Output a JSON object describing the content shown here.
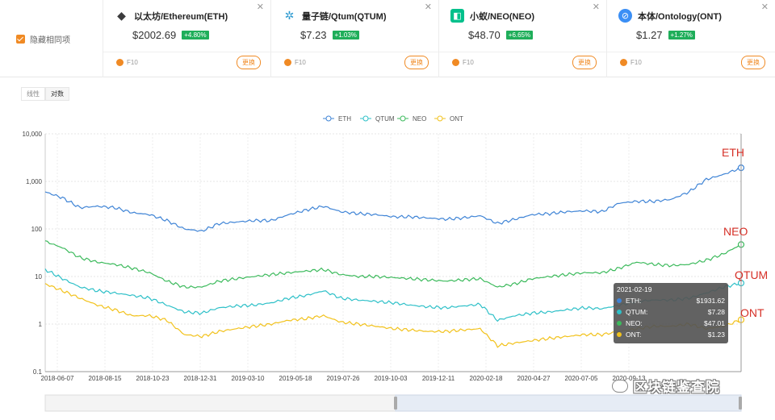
{
  "compare": {
    "hide_same_label": "隐藏相同项",
    "cards": [
      {
        "name": "以太坊/Ethereum(ETH)",
        "price": "$2002.69",
        "change": "+4.80%",
        "f10": "F10",
        "swap": "更换",
        "icon": "ethereum-icon",
        "icon_color": "#3c3c3d",
        "icon_glyph": "◆"
      },
      {
        "name": "量子链/Qtum(QTUM)",
        "price": "$7.23",
        "change": "+1.03%",
        "f10": "F10",
        "swap": "更换",
        "icon": "qtum-icon",
        "icon_color": "#2e9ad0",
        "icon_glyph": "✲"
      },
      {
        "name": "小蚁/NEO(NEO)",
        "price": "$48.70",
        "change": "+6.65%",
        "f10": "F10",
        "swap": "更换",
        "icon": "neo-icon",
        "icon_color": "#00c08b",
        "icon_glyph": "◧"
      },
      {
        "name": "本体/Ontology(ONT)",
        "price": "$1.27",
        "change": "+1.27%",
        "f10": "F10",
        "swap": "更换",
        "icon": "ontology-icon",
        "icon_color": "#3b8ff5",
        "icon_glyph": "⊘"
      }
    ]
  },
  "scale_toggle": {
    "linear": "线性",
    "log": "对数",
    "active": "log"
  },
  "watermark": "区块链鉴查院",
  "tooltip": {
    "date": "2021-02-19",
    "rows": [
      {
        "label": "ETH:",
        "value": "$1931.62",
        "color": "#3f84d6"
      },
      {
        "label": "QTUM:",
        "value": "$7.28",
        "color": "#2ec0c8"
      },
      {
        "label": "NEO:",
        "value": "$47.01",
        "color": "#3cba5c"
      },
      {
        "label": "ONT:",
        "value": "$1.23",
        "color": "#f2c21c"
      }
    ]
  },
  "annotations": [
    "ETH",
    "NEO",
    "QTUM",
    "ONT"
  ],
  "chart_data": {
    "type": "line",
    "y_scale": "log",
    "ylim": [
      0.1,
      10000
    ],
    "y_ticks": [
      "10,000",
      "1,000",
      "100",
      "10",
      "1",
      "0.1"
    ],
    "x_ticks": [
      "2018-06-07",
      "2018-08-15",
      "2018-10-23",
      "2018-12-31",
      "2019-03-10",
      "2019-05-18",
      "2019-07-26",
      "2019-10-03",
      "2019-12-11",
      "2020-02-18",
      "2020-04-27",
      "2020-07-05",
      "2020-09-13"
    ],
    "grid": true,
    "legend": "top",
    "series": [
      {
        "name": "ETH",
        "color": "#3f84d6",
        "values": [
          600,
          450,
          280,
          300,
          280,
          220,
          200,
          150,
          100,
          90,
          130,
          140,
          150,
          150,
          200,
          250,
          300,
          230,
          210,
          200,
          180,
          180,
          170,
          160,
          170,
          190,
          130,
          160,
          200,
          210,
          230,
          240,
          230,
          350,
          380,
          380,
          420,
          600,
          1100,
          1400,
          1931.62
        ]
      },
      {
        "name": "QTUM",
        "color": "#2ec0c8",
        "values": [
          14,
          9,
          6,
          5,
          4.5,
          4,
          3.5,
          2.5,
          1.8,
          1.7,
          2.2,
          2.4,
          2.5,
          2.8,
          3.5,
          4,
          5,
          3.5,
          3.2,
          3,
          2.8,
          2.5,
          2.3,
          2.2,
          2.4,
          2.6,
          1.2,
          1.5,
          1.7,
          1.8,
          2,
          2.2,
          2.1,
          2.5,
          3,
          3.2,
          3.2,
          3.5,
          4.5,
          6,
          7.28
        ]
      },
      {
        "name": "NEO",
        "color": "#3cba5c",
        "values": [
          55,
          40,
          25,
          20,
          18,
          15,
          12,
          8,
          6,
          6,
          8,
          9,
          10,
          11,
          12,
          13,
          14,
          11,
          10,
          10,
          9.5,
          9,
          8.5,
          8,
          8.5,
          9,
          6,
          7,
          9,
          10,
          11,
          12,
          12,
          15,
          20,
          18,
          17,
          18,
          22,
          30,
          47.01
        ]
      },
      {
        "name": "ONT",
        "color": "#f2c21c",
        "values": [
          7,
          5,
          3.5,
          2.5,
          2,
          1.5,
          1.5,
          1.2,
          0.6,
          0.55,
          0.7,
          0.8,
          0.9,
          1,
          1.2,
          1.3,
          1.5,
          1.1,
          1,
          0.9,
          0.8,
          0.75,
          0.7,
          0.7,
          0.75,
          0.8,
          0.35,
          0.4,
          0.45,
          0.5,
          0.55,
          0.6,
          0.6,
          0.7,
          0.8,
          0.9,
          0.9,
          1,
          0.8,
          0.9,
          1.23
        ]
      }
    ]
  }
}
